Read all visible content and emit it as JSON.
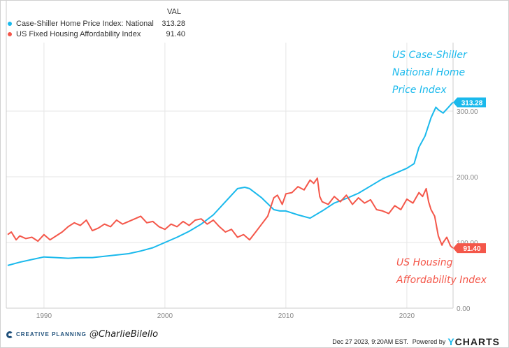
{
  "legend": {
    "header": "VAL",
    "items": [
      {
        "name": "Case-Shiller Home Price Index: National",
        "value": "313.28",
        "color": "#1ab9ec"
      },
      {
        "name": "US Fixed Housing Affordability Index",
        "value": "91.40",
        "color": "#f4574a"
      }
    ]
  },
  "annotations": {
    "blue": [
      "US Case-Shiller",
      "National Home",
      "Price Index"
    ],
    "red": [
      "US Housing",
      "Affordability Index"
    ]
  },
  "footer": {
    "brand": "CREATIVE PLANNING",
    "handle": "@CharlieBilello",
    "timestamp": "Dec 27 2023, 9:20AM EST.",
    "powered": "Powered by",
    "ycharts": "YCHARTS"
  },
  "chart_data": {
    "type": "line",
    "xlim": [
      1987,
      2023.9
    ],
    "ylim": [
      0,
      330
    ],
    "x_ticks": [
      "1990",
      "2000",
      "2010",
      "2020"
    ],
    "x_tick_values": [
      1990,
      2000,
      2010,
      2020
    ],
    "y_ticks": [
      "0.00",
      "100.00",
      "200.00",
      "300.00"
    ],
    "y_tick_values": [
      0,
      100,
      200,
      300
    ],
    "grid": true,
    "legend_position": "top-left",
    "y_axis_side": "right",
    "series": [
      {
        "name": "Case-Shiller Home Price Index: National",
        "color": "#1ab9ec",
        "last_label": "313.28",
        "x": [
          1987,
          1988,
          1989,
          1990,
          1991,
          1992,
          1993,
          1994,
          1995,
          1996,
          1997,
          1998,
          1999,
          2000,
          2001,
          2002,
          2003,
          2004,
          2005,
          2006,
          2006.6,
          2007,
          2008,
          2009,
          2009.5,
          2010,
          2011,
          2012,
          2013,
          2014,
          2015,
          2016,
          2017,
          2018,
          2019,
          2020,
          2020.6,
          2021,
          2021.5,
          2022,
          2022.4,
          2022.6,
          2023,
          2023.4,
          2023.8
        ],
        "y": [
          65,
          70,
          74,
          78,
          77,
          76,
          77,
          77,
          79,
          81,
          83,
          87,
          92,
          100,
          108,
          117,
          128,
          142,
          162,
          182,
          184,
          182,
          168,
          150,
          148,
          148,
          142,
          137,
          148,
          160,
          167,
          175,
          186,
          197,
          205,
          213,
          220,
          245,
          262,
          290,
          306,
          302,
          297,
          305,
          313.28
        ]
      },
      {
        "name": "US Fixed Housing Affordability Index",
        "color": "#f4574a",
        "last_label": "91.40",
        "x": [
          1987,
          1987.3,
          1987.7,
          1988,
          1988.5,
          1989,
          1989.5,
          1990,
          1990.5,
          1991,
          1991.5,
          1992,
          1992.5,
          1993,
          1993.5,
          1994,
          1994.5,
          1995,
          1995.5,
          1996,
          1996.5,
          1997,
          1997.5,
          1998,
          1998.5,
          1999,
          1999.5,
          2000,
          2000.5,
          2001,
          2001.5,
          2002,
          2002.5,
          2003,
          2003.5,
          2004,
          2004.5,
          2005,
          2005.5,
          2006,
          2006.5,
          2007,
          2007.5,
          2008,
          2008.5,
          2009,
          2009.3,
          2009.7,
          2010,
          2010.5,
          2011,
          2011.5,
          2012,
          2012.3,
          2012.6,
          2012.8,
          2013,
          2013.5,
          2014,
          2014.5,
          2015,
          2015.5,
          2016,
          2016.5,
          2017,
          2017.5,
          2018,
          2018.5,
          2019,
          2019.5,
          2020,
          2020.5,
          2021,
          2021.3,
          2021.6,
          2021.8,
          2022,
          2022.3,
          2022.6,
          2022.9,
          2023,
          2023.3,
          2023.6,
          2023.8
        ],
        "y": [
          112,
          116,
          104,
          110,
          106,
          108,
          102,
          112,
          104,
          110,
          116,
          124,
          130,
          126,
          134,
          118,
          122,
          128,
          124,
          134,
          128,
          132,
          136,
          140,
          130,
          132,
          124,
          120,
          128,
          124,
          132,
          126,
          134,
          136,
          128,
          134,
          124,
          116,
          120,
          108,
          112,
          104,
          116,
          128,
          140,
          168,
          172,
          158,
          174,
          176,
          185,
          180,
          195,
          190,
          198,
          170,
          162,
          158,
          170,
          162,
          172,
          158,
          168,
          160,
          165,
          150,
          148,
          144,
          156,
          150,
          166,
          160,
          176,
          170,
          182,
          162,
          150,
          140,
          110,
          96,
          100,
          108,
          95,
          91.4
        ]
      }
    ]
  }
}
